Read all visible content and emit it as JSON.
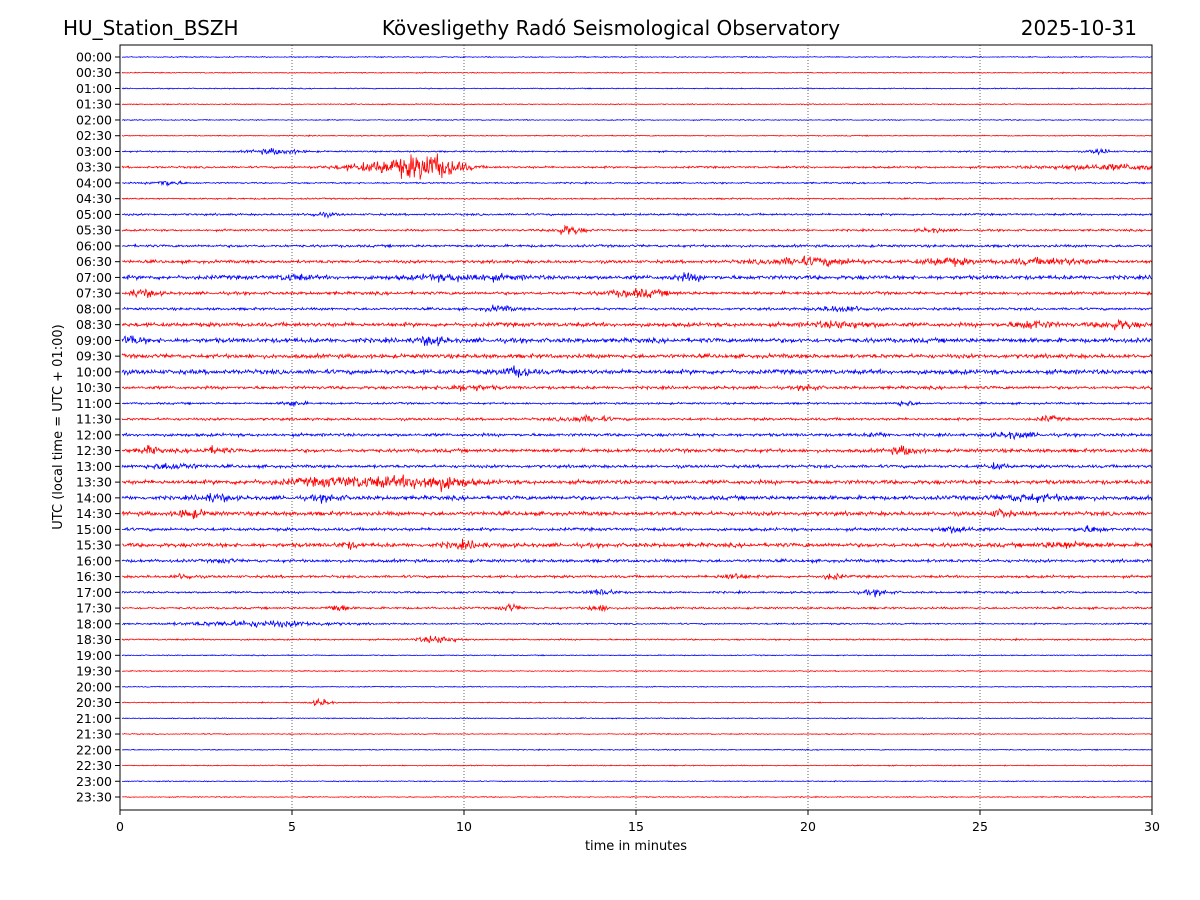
{
  "header": {
    "station": "HU_Station_BSZH",
    "title": "Kövesligethy Radó Seismological Observatory",
    "date": "2025-10-31"
  },
  "chart_data": {
    "type": "line",
    "subtype": "helicorder",
    "xlabel": "time in minutes",
    "ylabel": "UTC (local time = UTC + 01:00)",
    "xlim": [
      0,
      30
    ],
    "xticks": [
      0,
      5,
      10,
      15,
      20,
      25,
      30
    ],
    "grid": "vertical dotted at x ticks",
    "colors": [
      "#0000ff",
      "#ff0000"
    ],
    "rows": [
      "00:00",
      "00:30",
      "01:00",
      "01:30",
      "02:00",
      "02:30",
      "03:00",
      "03:30",
      "04:00",
      "04:30",
      "05:00",
      "05:30",
      "06:00",
      "06:30",
      "07:00",
      "07:30",
      "08:00",
      "08:30",
      "09:00",
      "09:30",
      "10:00",
      "10:30",
      "11:00",
      "11:30",
      "12:00",
      "12:30",
      "13:00",
      "13:30",
      "14:00",
      "14:30",
      "15:00",
      "15:30",
      "16:00",
      "16:30",
      "17:00",
      "17:30",
      "18:00",
      "18:30",
      "19:00",
      "19:30",
      "20:00",
      "20:30",
      "21:00",
      "21:30",
      "22:00",
      "22:30",
      "23:00",
      "23:30"
    ],
    "base_amplitude": [
      1,
      1,
      1,
      1,
      1,
      1,
      1.5,
      2,
      1.5,
      1.5,
      2,
      2,
      2.5,
      3,
      4,
      3,
      2.5,
      4,
      4.5,
      4,
      4.5,
      3,
      2,
      2.5,
      3,
      3.5,
      3,
      4,
      4,
      4,
      3,
      4,
      3,
      2.5,
      2,
      2,
      1.5,
      1.5,
      1,
      1,
      1,
      1,
      1,
      1,
      1,
      1,
      1,
      1
    ],
    "events": [
      [
        6,
        4.5,
        3,
        0.5
      ],
      [
        6,
        28.5,
        3,
        0.2
      ],
      [
        7,
        8.5,
        8,
        0.8
      ],
      [
        7,
        9.2,
        8,
        0.5
      ],
      [
        7,
        7.5,
        3,
        1
      ],
      [
        7,
        29,
        3,
        1.5
      ],
      [
        8,
        1.3,
        3,
        0.3
      ],
      [
        10,
        5.8,
        2,
        0.3
      ],
      [
        11,
        13,
        5,
        0.3
      ],
      [
        11,
        23.6,
        2,
        0.3
      ],
      [
        13,
        20,
        4,
        1
      ],
      [
        13,
        24,
        4,
        0.5
      ],
      [
        13,
        27,
        3,
        1
      ],
      [
        14,
        10,
        3,
        1
      ],
      [
        14,
        5,
        3,
        0.3
      ],
      [
        14,
        16.5,
        3,
        0.3
      ],
      [
        15,
        0.6,
        4,
        0.3
      ],
      [
        15,
        15,
        4,
        0.6
      ],
      [
        16,
        11,
        3,
        0.3
      ],
      [
        16,
        21,
        3,
        0.5
      ],
      [
        17,
        21,
        3,
        0.6
      ],
      [
        17,
        26.5,
        4,
        0.4
      ],
      [
        17,
        29,
        4,
        0.4
      ],
      [
        18,
        0.2,
        4,
        0.3
      ],
      [
        18,
        9,
        4,
        0.3
      ],
      [
        20,
        11.5,
        5,
        0.3
      ],
      [
        21,
        10,
        3,
        0.5
      ],
      [
        21,
        20,
        3,
        0.2
      ],
      [
        22,
        5,
        3,
        0.2
      ],
      [
        22,
        22.8,
        3,
        0.2
      ],
      [
        23,
        13.5,
        3,
        0.5
      ],
      [
        23,
        27,
        3,
        0.2
      ],
      [
        24,
        22,
        2,
        0.2
      ],
      [
        24,
        26,
        3,
        0.4
      ],
      [
        25,
        0.8,
        4,
        0.2
      ],
      [
        25,
        2.7,
        3,
        0.3
      ],
      [
        25,
        22.8,
        4,
        0.3
      ],
      [
        26,
        1.5,
        3,
        0.5
      ],
      [
        26,
        25.5,
        3,
        0.2
      ],
      [
        27,
        7,
        5,
        1.5
      ],
      [
        27,
        9.2,
        6,
        0.6
      ],
      [
        28,
        2.7,
        4,
        0.3
      ],
      [
        28,
        6,
        3,
        0.3
      ],
      [
        28,
        26.5,
        3,
        0.8
      ],
      [
        29,
        2,
        4,
        0.3
      ],
      [
        29,
        25.6,
        4,
        0.2
      ],
      [
        30,
        24.3,
        3,
        0.4
      ],
      [
        30,
        28.2,
        3,
        0.3
      ],
      [
        31,
        6.6,
        3,
        0.2
      ],
      [
        31,
        10,
        3,
        0.4
      ],
      [
        31,
        27.5,
        3,
        0.5
      ],
      [
        32,
        3,
        2,
        0.2
      ],
      [
        33,
        1.8,
        3,
        0.2
      ],
      [
        33,
        17.8,
        3,
        0.3
      ],
      [
        33,
        20.7,
        3,
        0.2
      ],
      [
        34,
        14,
        3,
        0.3
      ],
      [
        34,
        22,
        3,
        0.3
      ],
      [
        35,
        6.3,
        4,
        0.2
      ],
      [
        35,
        11.3,
        4,
        0.2
      ],
      [
        35,
        13.9,
        4,
        0.2
      ],
      [
        36,
        4,
        3,
        1.5
      ],
      [
        37,
        9.2,
        4,
        0.4
      ],
      [
        41,
        5.8,
        4,
        0.2
      ]
    ]
  }
}
